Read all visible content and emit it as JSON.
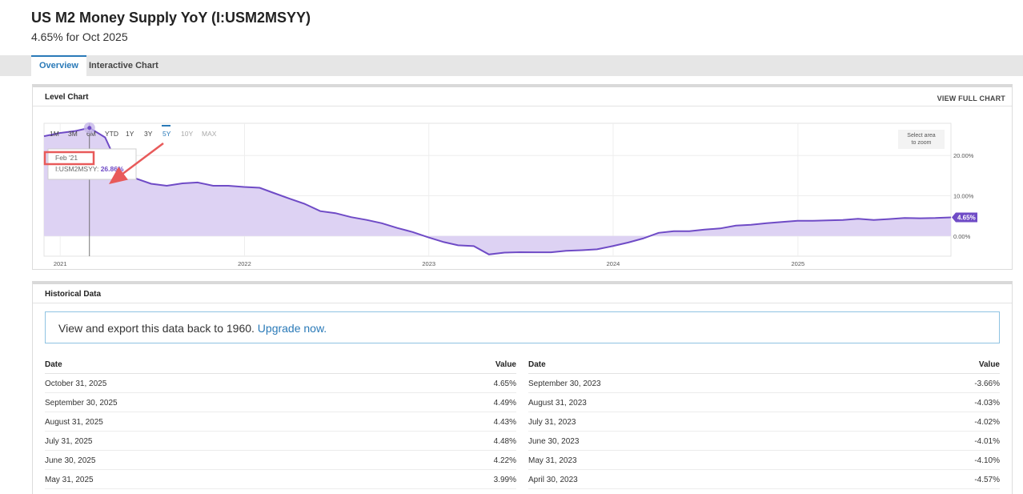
{
  "header": {
    "title": "US M2 Money Supply YoY (I:USM2MSYY)",
    "subtitle": "4.65% for Oct 2025"
  },
  "tabs": [
    {
      "label": "Overview",
      "active": true
    },
    {
      "label": "Interactive Chart",
      "active": false
    }
  ],
  "chart_panel": {
    "title": "Level Chart",
    "view_full_label": "VIEW FULL CHART",
    "ranges": [
      "1M",
      "3M",
      "6M",
      "YTD",
      "1Y",
      "3Y",
      "5Y",
      "10Y",
      "MAX"
    ],
    "active_range": "5Y",
    "disabled_ranges": [
      "10Y",
      "MAX"
    ],
    "zoom_hint_line1": "Select area",
    "zoom_hint_line2": "to zoom",
    "tooltip": {
      "date": "Feb '21",
      "series_label": "I:USM2MSYY:",
      "value": "26.86%"
    },
    "last_value_label": "4.65%"
  },
  "chart_data": {
    "type": "area",
    "series_name": "I:USM2MSYY",
    "x": [
      "2020-11-30",
      "2020-12-31",
      "2021-01-31",
      "2021-02-28",
      "2021-03-31",
      "2021-04-30",
      "2021-05-31",
      "2021-06-30",
      "2021-07-31",
      "2021-08-31",
      "2021-09-30",
      "2021-10-31",
      "2021-11-30",
      "2021-12-31",
      "2022-01-31",
      "2022-02-28",
      "2022-03-31",
      "2022-04-30",
      "2022-05-31",
      "2022-06-30",
      "2022-07-31",
      "2022-08-31",
      "2022-09-30",
      "2022-10-31",
      "2022-11-30",
      "2022-12-31",
      "2023-01-31",
      "2023-02-28",
      "2023-03-31",
      "2023-04-30",
      "2023-05-31",
      "2023-06-30",
      "2023-07-31",
      "2023-08-31",
      "2023-09-30",
      "2023-10-31",
      "2023-11-30",
      "2023-12-31",
      "2024-01-31",
      "2024-02-29",
      "2024-03-31",
      "2024-04-30",
      "2024-05-31",
      "2024-06-30",
      "2024-07-31",
      "2024-08-31",
      "2024-09-30",
      "2024-10-31",
      "2024-11-30",
      "2024-12-31",
      "2025-01-31",
      "2025-02-28",
      "2025-03-31",
      "2025-04-30",
      "2025-05-31",
      "2025-06-30",
      "2025-07-31",
      "2025-08-31",
      "2025-09-30",
      "2025-10-31"
    ],
    "y": [
      24.8,
      25.6,
      26.1,
      26.86,
      24.5,
      16.3,
      14.3,
      13.0,
      12.5,
      13.1,
      13.3,
      12.5,
      12.5,
      12.2,
      12.0,
      10.7,
      9.3,
      8.0,
      6.2,
      5.7,
      4.7,
      4.0,
      3.2,
      2.0,
      1.0,
      -0.3,
      -1.5,
      -2.3,
      -2.5,
      -4.57,
      -4.1,
      -4.01,
      -4.02,
      -4.03,
      -3.66,
      -3.5,
      -3.3,
      -2.5,
      -1.6,
      -0.6,
      0.8,
      1.2,
      1.2,
      1.6,
      1.9,
      2.6,
      2.8,
      3.2,
      3.5,
      3.8,
      3.8,
      3.9,
      4.0,
      4.3,
      3.99,
      4.22,
      4.48,
      4.43,
      4.49,
      4.65
    ],
    "x_ticks": [
      "2021",
      "2022",
      "2023",
      "2024",
      "2025"
    ],
    "y_ticks": [
      "20.00%",
      "10.00%",
      "0.00%"
    ],
    "x_range": [
      "2020-11-30",
      "2025-10-31"
    ],
    "ylim": [
      -5,
      28
    ],
    "grid": true,
    "colors": {
      "line": "#6f4bc6",
      "fill": "#dbd0f2",
      "last_badge": "#6f4bc6",
      "annotation": "#e85a5a"
    }
  },
  "historical": {
    "title": "Historical Data",
    "upgrade_text": "View and export this data back to 1960.",
    "upgrade_link": "Upgrade now.",
    "col_date": "Date",
    "col_value": "Value",
    "left_rows": [
      {
        "date": "October 31, 2025",
        "value": "4.65%"
      },
      {
        "date": "September 30, 2025",
        "value": "4.49%"
      },
      {
        "date": "August 31, 2025",
        "value": "4.43%"
      },
      {
        "date": "July 31, 2025",
        "value": "4.48%"
      },
      {
        "date": "June 30, 2025",
        "value": "4.22%"
      },
      {
        "date": "May 31, 2025",
        "value": "3.99%"
      }
    ],
    "right_rows": [
      {
        "date": "September 30, 2023",
        "value": "-3.66%"
      },
      {
        "date": "August 31, 2023",
        "value": "-4.03%"
      },
      {
        "date": "July 31, 2023",
        "value": "-4.02%"
      },
      {
        "date": "June 30, 2023",
        "value": "-4.01%"
      },
      {
        "date": "May 31, 2023",
        "value": "-4.10%"
      },
      {
        "date": "April 30, 2023",
        "value": "-4.57%"
      }
    ]
  }
}
